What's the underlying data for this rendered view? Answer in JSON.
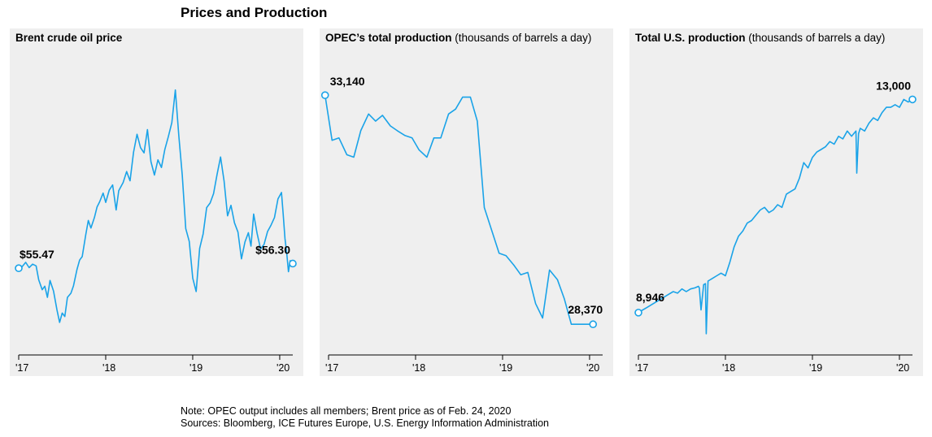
{
  "title": "Prices and Production",
  "notes": {
    "note": "Note: OPEC output includes all members; Brent price as of Feb. 24, 2020",
    "sources": "Sources: Bloomberg, ICE Futures Europe, U.S. Energy Information Administration"
  },
  "colors": {
    "line": "#1aa3e8",
    "panel_bg": "#efefef",
    "marker_fill": "#ffffff"
  },
  "chart_data": [
    {
      "type": "line",
      "title": "Brent crude oil price",
      "subtitle": "",
      "xlabel": "",
      "ylabel": "",
      "x_ticks": [
        "'17",
        "'18",
        "'19",
        "'20"
      ],
      "xlim": [
        2017.0,
        2020.15
      ],
      "ylim": [
        42,
        89
      ],
      "start_label": "$55.47",
      "end_label": "$56.30",
      "grid": false,
      "series": [
        {
          "x": [
            2017.0,
            2017.04,
            2017.08,
            2017.12,
            2017.16,
            2017.2,
            2017.23,
            2017.27,
            2017.3,
            2017.33,
            2017.36,
            2017.4,
            2017.44,
            2017.47,
            2017.5,
            2017.53,
            2017.56,
            2017.6,
            2017.63,
            2017.67,
            2017.7,
            2017.73,
            2017.77,
            2017.8,
            2017.83,
            2017.87,
            2017.9,
            2017.93,
            2017.97,
            2018.0,
            2018.04,
            2018.08,
            2018.12,
            2018.15,
            2018.2,
            2018.24,
            2018.28,
            2018.32,
            2018.36,
            2018.4,
            2018.44,
            2018.48,
            2018.52,
            2018.56,
            2018.6,
            2018.64,
            2018.68,
            2018.72,
            2018.76,
            2018.8,
            2018.84,
            2018.88,
            2018.92,
            2018.96,
            2019.0,
            2019.04,
            2019.08,
            2019.12,
            2019.16,
            2019.2,
            2019.24,
            2019.28,
            2019.32,
            2019.36,
            2019.4,
            2019.44,
            2019.48,
            2019.52,
            2019.56,
            2019.6,
            2019.64,
            2019.67,
            2019.7,
            2019.74,
            2019.78,
            2019.82,
            2019.86,
            2019.9,
            2019.94,
            2019.98,
            2020.02,
            2020.04,
            2020.06,
            2020.08,
            2020.1,
            2020.12,
            2020.15
          ],
          "y": [
            55.5,
            55.8,
            56.5,
            55.6,
            56.2,
            55.9,
            53.5,
            51.8,
            52.4,
            50.5,
            53.4,
            51.6,
            48.3,
            46.2,
            47.8,
            47.2,
            50.5,
            51.2,
            52.5,
            55.3,
            56.9,
            57.5,
            61.2,
            63.7,
            62.4,
            64.2,
            66.0,
            66.9,
            68.4,
            66.8,
            68.9,
            69.8,
            65.5,
            68.8,
            70.2,
            72.1,
            70.5,
            75.4,
            78.5,
            76.2,
            75.3,
            79.3,
            73.8,
            71.5,
            74.1,
            72.8,
            75.9,
            78.1,
            80.5,
            86.1,
            78.2,
            71.5,
            62.3,
            60.1,
            53.8,
            51.5,
            58.9,
            61.4,
            65.9,
            66.7,
            68.3,
            71.6,
            74.6,
            70.5,
            64.5,
            66.3,
            63.3,
            61.7,
            57.1,
            60.0,
            61.6,
            59.3,
            64.8,
            61.5,
            58.8,
            59.6,
            61.8,
            62.9,
            64.2,
            67.4,
            68.5,
            64.8,
            60.6,
            58.2,
            54.9,
            56.8,
            56.3
          ]
        }
      ]
    },
    {
      "type": "line",
      "title": "OPEC’s total production",
      "subtitle": "(thousands of barrels a day)",
      "xlabel": "",
      "ylabel": "",
      "x_ticks": [
        "'17",
        "'18",
        "'19",
        "'20"
      ],
      "xlim": [
        2017.0,
        2020.15
      ],
      "ylim": [
        27900,
        33600
      ],
      "start_label": "33,140",
      "end_label": "28,370",
      "grid": false,
      "series": [
        {
          "x": [
            2016.96,
            2017.04,
            2017.12,
            2017.21,
            2017.29,
            2017.37,
            2017.46,
            2017.54,
            2017.62,
            2017.71,
            2017.79,
            2017.88,
            2017.96,
            2018.04,
            2018.13,
            2018.21,
            2018.29,
            2018.38,
            2018.46,
            2018.54,
            2018.63,
            2018.71,
            2018.79,
            2018.88,
            2018.96,
            2019.04,
            2019.13,
            2019.21,
            2019.29,
            2019.38,
            2019.46,
            2019.54,
            2019.63,
            2019.71,
            2019.79,
            2019.88,
            2019.96,
            2020.04
          ],
          "y": [
            33140,
            32200,
            32250,
            31900,
            31850,
            32400,
            32750,
            32600,
            32720,
            32500,
            32400,
            32300,
            32250,
            32000,
            31850,
            32250,
            32250,
            32750,
            32850,
            33100,
            33100,
            32600,
            30800,
            30300,
            29850,
            29800,
            29600,
            29400,
            29450,
            28800,
            28500,
            29500,
            29300,
            28900,
            28370,
            28370,
            28370,
            28370
          ]
        }
      ]
    },
    {
      "type": "line",
      "title": "Total U.S. production",
      "subtitle": "(thousands of barrels a day)",
      "xlabel": "",
      "ylabel": "",
      "x_ticks": [
        "'17",
        "'18",
        "'19",
        "'20"
      ],
      "xlim": [
        2017.0,
        2020.15
      ],
      "ylim": [
        8300,
        13500
      ],
      "start_label": "8,946",
      "end_label": "13,000",
      "grid": false,
      "series": [
        {
          "x": [
            2017.0,
            2017.05,
            2017.1,
            2017.15,
            2017.2,
            2017.25,
            2017.3,
            2017.35,
            2017.4,
            2017.45,
            2017.5,
            2017.55,
            2017.6,
            2017.65,
            2017.69,
            2017.7,
            2017.72,
            2017.75,
            2017.77,
            2017.78,
            2017.8,
            2017.85,
            2017.9,
            2017.95,
            2018.0,
            2018.05,
            2018.1,
            2018.15,
            2018.2,
            2018.25,
            2018.3,
            2018.35,
            2018.4,
            2018.45,
            2018.5,
            2018.55,
            2018.6,
            2018.65,
            2018.7,
            2018.75,
            2018.8,
            2018.85,
            2018.9,
            2018.95,
            2019.0,
            2019.05,
            2019.1,
            2019.15,
            2019.2,
            2019.25,
            2019.3,
            2019.35,
            2019.4,
            2019.45,
            2019.5,
            2019.51,
            2019.53,
            2019.55,
            2019.6,
            2019.65,
            2019.7,
            2019.75,
            2019.8,
            2019.85,
            2019.9,
            2019.95,
            2020.0,
            2020.05,
            2020.1,
            2020.15
          ],
          "y": [
            8950,
            9000,
            9050,
            9100,
            9150,
            9200,
            9250,
            9300,
            9350,
            9320,
            9400,
            9350,
            9400,
            9420,
            9450,
            9420,
            9000,
            9480,
            9500,
            8550,
            9550,
            9600,
            9650,
            9700,
            9650,
            9900,
            10200,
            10400,
            10500,
            10650,
            10700,
            10800,
            10900,
            10950,
            10850,
            10900,
            11000,
            10950,
            11200,
            11250,
            11300,
            11500,
            11800,
            11700,
            11900,
            12000,
            12050,
            12100,
            12200,
            12150,
            12300,
            12250,
            12400,
            12300,
            12400,
            11600,
            12350,
            12450,
            12400,
            12550,
            12650,
            12600,
            12750,
            12850,
            12850,
            12900,
            12850,
            13000,
            12950,
            13000
          ]
        }
      ]
    }
  ]
}
